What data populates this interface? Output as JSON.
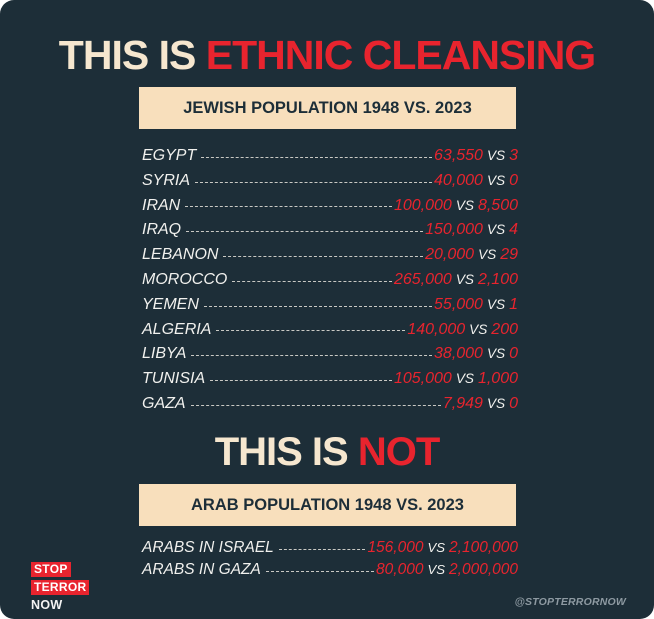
{
  "headline1": {
    "white": "THIS IS",
    "red": "ETHNIC CLEANSING"
  },
  "banner1": "JEWISH POPULATION 1948 VS. 2023",
  "jewish_rows": [
    {
      "country": "EGYPT",
      "y1948": "63,550",
      "vs": "VS",
      "y2023": "3"
    },
    {
      "country": "SYRIA",
      "y1948": "40,000",
      "vs": "VS",
      "y2023": "0"
    },
    {
      "country": "IRAN",
      "y1948": "100,000",
      "vs": "VS",
      "y2023": "8,500"
    },
    {
      "country": "IRAQ",
      "y1948": "150,000",
      "vs": "VS",
      "y2023": "4"
    },
    {
      "country": "LEBANON",
      "y1948": "20,000",
      "vs": "VS",
      "y2023": "29"
    },
    {
      "country": "MOROCCO",
      "y1948": "265,000",
      "vs": "VS",
      "y2023": "2,100"
    },
    {
      "country": "YEMEN",
      "y1948": "55,000",
      "vs": "VS",
      "y2023": "1"
    },
    {
      "country": "ALGERIA",
      "y1948": "140,000",
      "vs": "VS",
      "y2023": "200"
    },
    {
      "country": "LIBYA",
      "y1948": "38,000",
      "vs": "VS",
      "y2023": "0"
    },
    {
      "country": "TUNISIA",
      "y1948": "105,000",
      "vs": "VS",
      "y2023": "1,000"
    },
    {
      "country": "GAZA",
      "y1948": "7,949",
      "vs": "VS",
      "y2023": "0"
    }
  ],
  "headline2": {
    "white": "THIS IS",
    "red": "NOT"
  },
  "banner2": "ARAB POPULATION 1948 VS. 2023",
  "arab_rows": [
    {
      "country": "ARABS IN ISRAEL",
      "y1948": "156,000",
      "vs": "VS",
      "y2023": "2,100,000"
    },
    {
      "country": "ARABS IN GAZA",
      "y1948": "80,000",
      "vs": "VS",
      "y2023": "2,000,000"
    }
  ],
  "logo": {
    "line1": "STOP",
    "line2": "TERROR",
    "line3": "NOW"
  },
  "handle": "@STOPTERRORNOW",
  "colors": {
    "background": "#1d2e38",
    "accent_red": "#e8242e",
    "banner": "#f8dfbc",
    "cream_text": "#f6e7cf"
  }
}
